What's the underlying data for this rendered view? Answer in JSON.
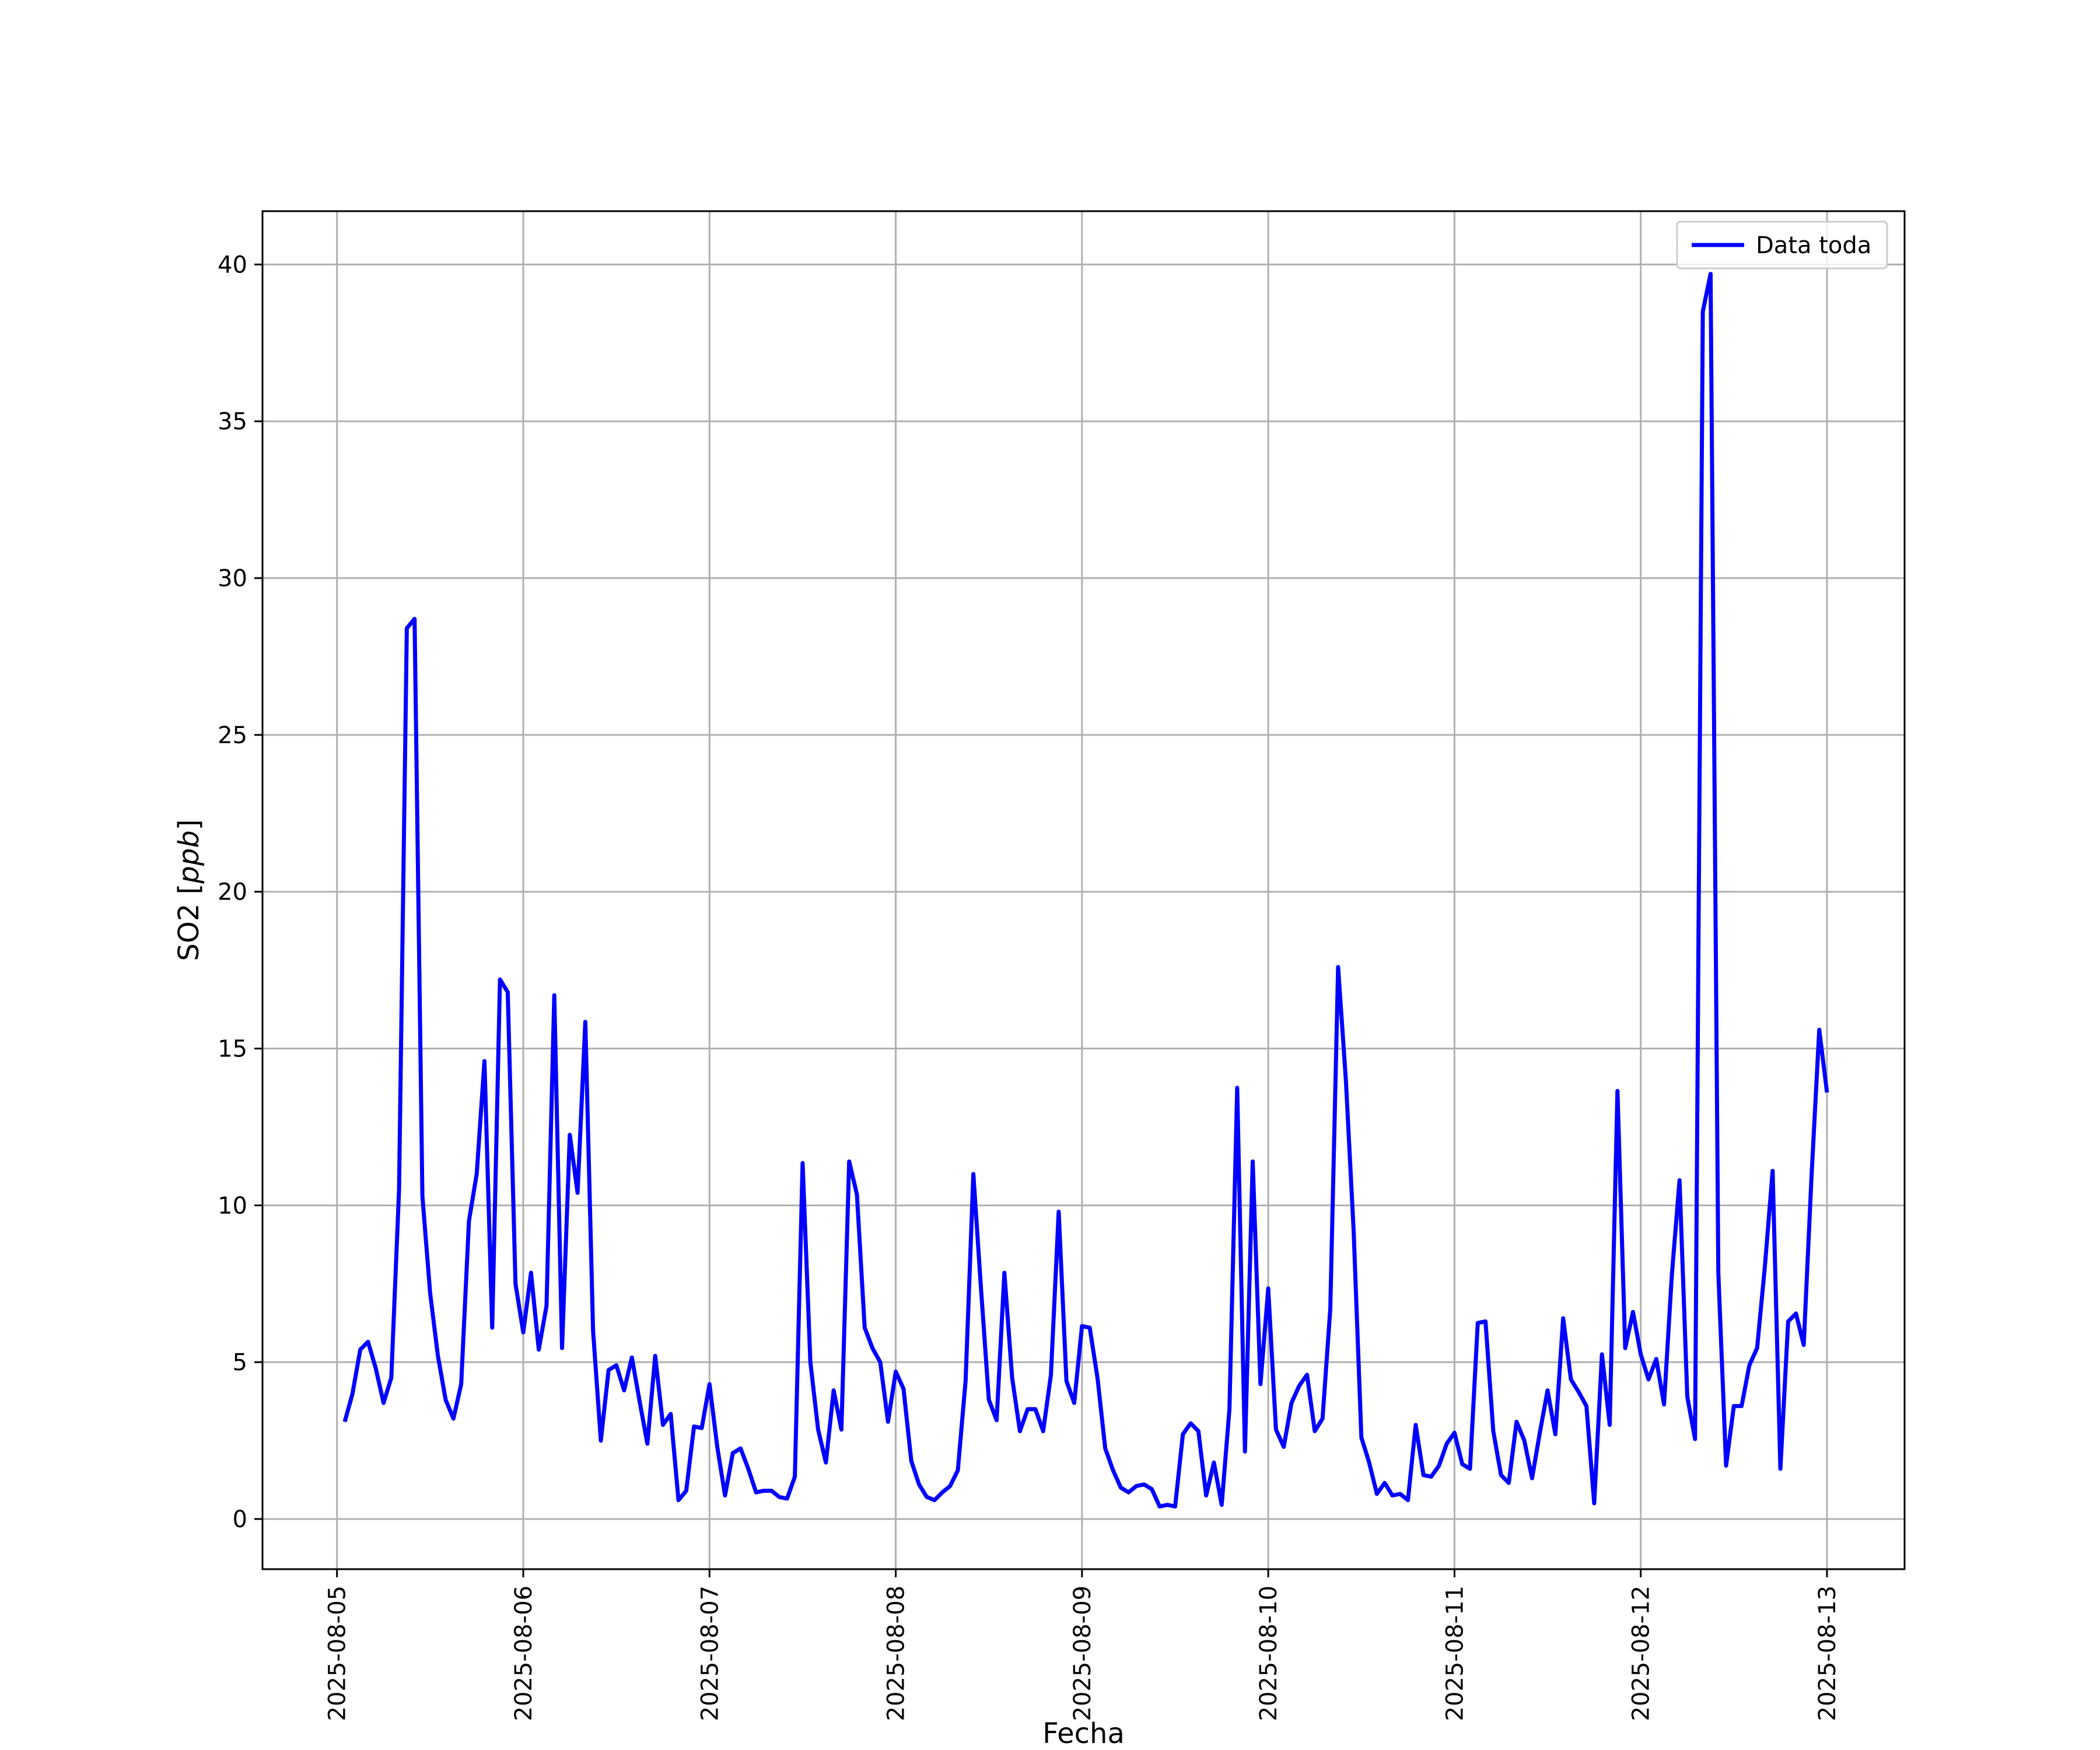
{
  "chart_data": {
    "type": "line",
    "title": "",
    "xlabel": "Fecha",
    "ylabel_main": "SO2 [",
    "ylabel_unit": "ppb",
    "ylabel_close": "]",
    "xlim": [
      "2025-08-04T14:24",
      "2025-08-13T10:00"
    ],
    "ylim": [
      -1.6,
      41.7
    ],
    "yticks": [
      0,
      5,
      10,
      15,
      20,
      25,
      30,
      35,
      40
    ],
    "xticks": [
      "2025-08-05",
      "2025-08-06",
      "2025-08-07",
      "2025-08-08",
      "2025-08-09",
      "2025-08-10",
      "2025-08-11",
      "2025-08-12",
      "2025-08-13"
    ],
    "grid": true,
    "legend": {
      "position": "top-right",
      "entries": [
        "Data toda"
      ]
    },
    "series": [
      {
        "name": "Data toda",
        "color": "#0000ff",
        "x": [
          "2025-08-05T01:00",
          "2025-08-05T02:00",
          "2025-08-05T03:00",
          "2025-08-05T04:00",
          "2025-08-05T05:00",
          "2025-08-05T06:00",
          "2025-08-05T07:00",
          "2025-08-05T08:00",
          "2025-08-05T09:00",
          "2025-08-05T10:00",
          "2025-08-05T11:00",
          "2025-08-05T12:00",
          "2025-08-05T13:00",
          "2025-08-05T14:00",
          "2025-08-05T15:00",
          "2025-08-05T16:00",
          "2025-08-05T17:00",
          "2025-08-05T18:00",
          "2025-08-05T19:00",
          "2025-08-05T20:00",
          "2025-08-05T21:00",
          "2025-08-05T22:00",
          "2025-08-05T23:00",
          "2025-08-06T00:00",
          "2025-08-06T01:00",
          "2025-08-06T02:00",
          "2025-08-06T03:00",
          "2025-08-06T04:00",
          "2025-08-06T05:00",
          "2025-08-06T06:00",
          "2025-08-06T07:00",
          "2025-08-06T08:00",
          "2025-08-06T09:00",
          "2025-08-06T10:00",
          "2025-08-06T11:00",
          "2025-08-06T12:00",
          "2025-08-06T13:00",
          "2025-08-06T14:00",
          "2025-08-06T15:00",
          "2025-08-06T16:00",
          "2025-08-06T17:00",
          "2025-08-06T18:00",
          "2025-08-06T19:00",
          "2025-08-06T20:00",
          "2025-08-06T21:00",
          "2025-08-06T22:00",
          "2025-08-06T23:00",
          "2025-08-07T00:00",
          "2025-08-07T01:00",
          "2025-08-07T02:00",
          "2025-08-07T03:00",
          "2025-08-07T04:00",
          "2025-08-07T05:00",
          "2025-08-07T06:00",
          "2025-08-07T07:00",
          "2025-08-07T08:00",
          "2025-08-07T09:00",
          "2025-08-07T10:00",
          "2025-08-07T11:00",
          "2025-08-07T12:00",
          "2025-08-07T13:00",
          "2025-08-07T14:00",
          "2025-08-07T15:00",
          "2025-08-07T16:00",
          "2025-08-07T17:00",
          "2025-08-07T18:00",
          "2025-08-07T19:00",
          "2025-08-07T20:00",
          "2025-08-07T21:00",
          "2025-08-07T22:00",
          "2025-08-07T23:00",
          "2025-08-08T00:00",
          "2025-08-08T01:00",
          "2025-08-08T02:00",
          "2025-08-08T03:00",
          "2025-08-08T04:00",
          "2025-08-08T05:00",
          "2025-08-08T06:00",
          "2025-08-08T07:00",
          "2025-08-08T08:00",
          "2025-08-08T09:00",
          "2025-08-08T10:00",
          "2025-08-08T11:00",
          "2025-08-08T12:00",
          "2025-08-08T13:00",
          "2025-08-08T14:00",
          "2025-08-08T15:00",
          "2025-08-08T16:00",
          "2025-08-08T17:00",
          "2025-08-08T18:00",
          "2025-08-08T19:00",
          "2025-08-08T20:00",
          "2025-08-08T21:00",
          "2025-08-08T22:00",
          "2025-08-08T23:00",
          "2025-08-09T00:00",
          "2025-08-09T01:00",
          "2025-08-09T02:00",
          "2025-08-09T03:00",
          "2025-08-09T04:00",
          "2025-08-09T05:00",
          "2025-08-09T06:00",
          "2025-08-09T07:00",
          "2025-08-09T08:00",
          "2025-08-09T09:00",
          "2025-08-09T10:00",
          "2025-08-09T11:00",
          "2025-08-09T12:00",
          "2025-08-09T13:00",
          "2025-08-09T14:00",
          "2025-08-09T15:00",
          "2025-08-09T16:00",
          "2025-08-09T17:00",
          "2025-08-09T18:00",
          "2025-08-09T19:00",
          "2025-08-09T20:00",
          "2025-08-09T21:00",
          "2025-08-09T22:00",
          "2025-08-09T23:00",
          "2025-08-10T00:00",
          "2025-08-10T01:00",
          "2025-08-10T02:00",
          "2025-08-10T03:00",
          "2025-08-10T04:00",
          "2025-08-10T05:00",
          "2025-08-10T06:00",
          "2025-08-10T07:00",
          "2025-08-10T08:00",
          "2025-08-10T09:00",
          "2025-08-10T10:00",
          "2025-08-10T11:00",
          "2025-08-10T12:00",
          "2025-08-10T13:00",
          "2025-08-10T14:00",
          "2025-08-10T15:00",
          "2025-08-10T16:00",
          "2025-08-10T17:00",
          "2025-08-10T18:00",
          "2025-08-10T19:00",
          "2025-08-10T20:00",
          "2025-08-10T21:00",
          "2025-08-10T22:00",
          "2025-08-10T23:00",
          "2025-08-11T00:00",
          "2025-08-11T01:00",
          "2025-08-11T02:00",
          "2025-08-11T03:00",
          "2025-08-11T04:00",
          "2025-08-11T05:00",
          "2025-08-11T06:00",
          "2025-08-11T07:00",
          "2025-08-11T08:00",
          "2025-08-11T09:00",
          "2025-08-11T10:00",
          "2025-08-11T11:00",
          "2025-08-11T12:00",
          "2025-08-11T13:00",
          "2025-08-11T14:00",
          "2025-08-11T15:00",
          "2025-08-11T16:00",
          "2025-08-11T17:00",
          "2025-08-11T18:00",
          "2025-08-11T19:00",
          "2025-08-11T20:00",
          "2025-08-11T21:00",
          "2025-08-11T22:00",
          "2025-08-11T23:00",
          "2025-08-12T00:00",
          "2025-08-12T01:00",
          "2025-08-12T02:00",
          "2025-08-12T03:00",
          "2025-08-12T04:00",
          "2025-08-12T05:00",
          "2025-08-12T06:00",
          "2025-08-12T07:00",
          "2025-08-12T08:00",
          "2025-08-12T09:00",
          "2025-08-12T10:00",
          "2025-08-12T11:00",
          "2025-08-12T12:00",
          "2025-08-12T13:00",
          "2025-08-12T14:00",
          "2025-08-12T15:00",
          "2025-08-12T16:00",
          "2025-08-12T17:00",
          "2025-08-12T18:00",
          "2025-08-12T19:00",
          "2025-08-12T20:00",
          "2025-08-12T21:00",
          "2025-08-12T22:00",
          "2025-08-12T23:00",
          "2025-08-13T00:00"
        ],
        "y": [
          3.1,
          4.0,
          5.4,
          5.65,
          4.8,
          3.7,
          4.5,
          10.5,
          28.4,
          28.7,
          10.3,
          7.2,
          5.2,
          3.8,
          3.2,
          4.3,
          9.5,
          11.0,
          14.6,
          6.1,
          17.2,
          16.8,
          7.5,
          5.95,
          7.85,
          5.4,
          6.8,
          16.7,
          5.45,
          12.25,
          10.4,
          15.85,
          6.0,
          2.5,
          4.75,
          4.9,
          4.1,
          5.15,
          3.75,
          2.4,
          5.2,
          3.0,
          3.35,
          0.6,
          0.9,
          2.95,
          2.9,
          4.3,
          2.3,
          0.75,
          2.1,
          2.25,
          1.6,
          0.85,
          0.9,
          0.9,
          0.7,
          0.65,
          1.35,
          11.35,
          5.0,
          2.85,
          1.8,
          4.1,
          2.85,
          11.4,
          10.35,
          6.1,
          5.45,
          5.0,
          3.1,
          4.7,
          4.15,
          1.85,
          1.1,
          0.7,
          0.6,
          0.85,
          1.05,
          1.55,
          4.4,
          11.0,
          7.3,
          3.8,
          3.15,
          7.85,
          4.5,
          2.8,
          3.5,
          3.5,
          2.8,
          4.6,
          9.8,
          4.4,
          3.7,
          6.15,
          6.1,
          4.5,
          2.25,
          1.55,
          1.0,
          0.85,
          1.05,
          1.1,
          0.95,
          0.4,
          0.45,
          0.4,
          2.7,
          3.05,
          2.8,
          0.75,
          1.8,
          0.45,
          3.5,
          13.75,
          2.15,
          11.4,
          4.3,
          7.35,
          2.85,
          2.3,
          3.7,
          4.25,
          4.6,
          2.8,
          3.2,
          6.7,
          17.6,
          14.0,
          9.2,
          2.6,
          1.8,
          0.8,
          1.15,
          0.75,
          0.8,
          0.6,
          3.0,
          1.4,
          1.35,
          1.7,
          2.4,
          2.75,
          1.75,
          1.6,
          6.25,
          6.3,
          2.8,
          1.4,
          1.15,
          3.1,
          2.5,
          1.3,
          2.75,
          4.1,
          2.7,
          6.4,
          4.45,
          4.05,
          3.6,
          0.5,
          5.25,
          3.0,
          13.65,
          5.45,
          6.6,
          5.25,
          4.45,
          5.1,
          3.65,
          7.75,
          10.8,
          3.9,
          2.55,
          38.5,
          39.7,
          7.85,
          1.7,
          3.6,
          3.6,
          4.9,
          5.45,
          8.05,
          11.1,
          1.6,
          6.3,
          6.55,
          5.55,
          10.9,
          15.6,
          13.6
        ]
      }
    ]
  }
}
